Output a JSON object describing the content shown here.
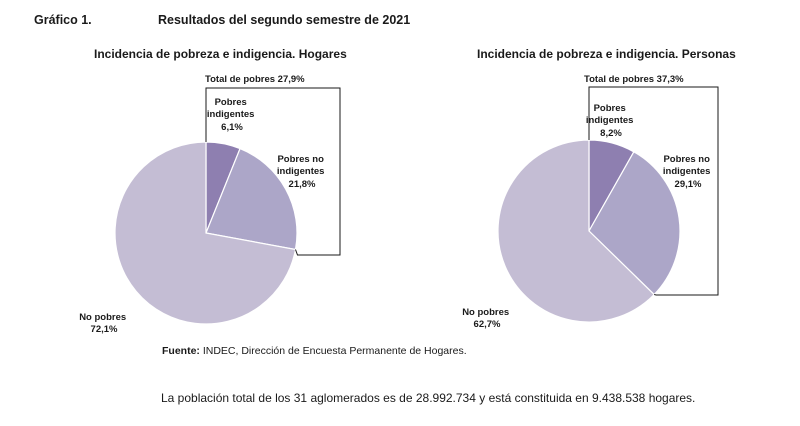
{
  "header": {
    "figure_label": "Gráfico 1.",
    "figure_title": "Resultados del segundo semestre de 2021"
  },
  "chart_data": [
    {
      "type": "pie",
      "title": "Incidencia de pobreza e indigencia. Hogares",
      "total_label": "Total de pobres 27,9%",
      "slices": [
        {
          "label": "Pobres indigentes",
          "value": 6.1,
          "value_label": "6,1%",
          "color": "#8e7fb0"
        },
        {
          "label": "Pobres no indigentes",
          "value": 21.8,
          "value_label": "21,8%",
          "color": "#aca6c8"
        },
        {
          "label": "No pobres",
          "value": 72.1,
          "value_label": "72,1%",
          "color": "#c4bdd4"
        }
      ]
    },
    {
      "type": "pie",
      "title": "Incidencia de pobreza e indigencia. Personas",
      "total_label": "Total de pobres 37,3%",
      "slices": [
        {
          "label": "Pobres indigentes",
          "value": 8.2,
          "value_label": "8,2%",
          "color": "#8e7fb0"
        },
        {
          "label": "Pobres no indigentes",
          "value": 29.1,
          "value_label": "29,1%",
          "color": "#aca6c8"
        },
        {
          "label": "No pobres",
          "value": 62.7,
          "value_label": "62,7%",
          "color": "#c4bdd4"
        }
      ]
    }
  ],
  "source": {
    "label": "Fuente:",
    "text": "INDEC, Dirección de Encuesta Permanente de Hogares."
  },
  "footnote": "La población total de los 31 aglomerados es de 28.992.734 y está constituida en 9.438.538 hogares."
}
